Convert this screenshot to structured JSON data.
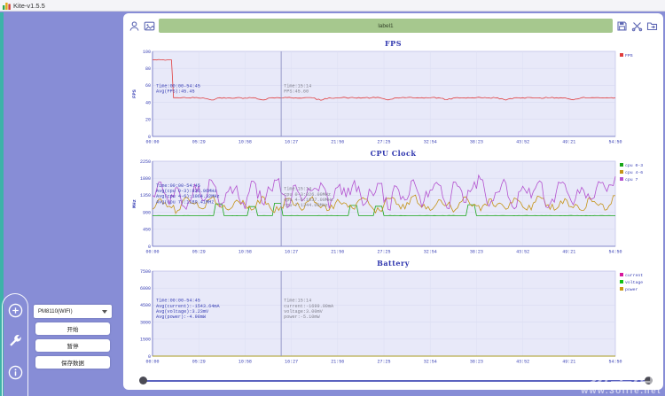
{
  "window": {
    "title": "Kite-v1.5.5"
  },
  "toolbar": {
    "label_text": "label1",
    "icons": [
      "user-icon",
      "screenshot-icon",
      "save-icon",
      "scissors-icon",
      "export-icon"
    ]
  },
  "sidebar": {
    "rail_icons": [
      "add-circle-icon",
      "wrench-icon",
      "info-icon"
    ],
    "device_select": {
      "value": "PM8110(WIFI)"
    },
    "buttons": [
      {
        "label": "开始"
      },
      {
        "label": "暂停"
      },
      {
        "label": "保存数据"
      }
    ]
  },
  "watermark": {
    "title": "易生活",
    "url": "www.3olife.net"
  },
  "colors": {
    "background": "#878dd6",
    "sidebar_teal": "#3db3a8",
    "label_bar_green": "#a6c88e",
    "panel": "#ffffff",
    "chart_text_blue": "#3a41b5",
    "plot_background": "#e8e9f9"
  },
  "chart_data": [
    {
      "type": "line",
      "title": "FPS",
      "ylabel": "FPS",
      "ylim": [
        0,
        100
      ],
      "yticks": [
        0,
        20,
        40,
        60,
        80,
        100
      ],
      "xticks": [
        "00:00",
        "05:29",
        "10:58",
        "16:27",
        "21:56",
        "27:25",
        "32:54",
        "38:23",
        "43:52",
        "49:21",
        "54:50"
      ],
      "legend_position": "right",
      "grid": true,
      "cursor": {
        "x_frac": 0.278
      },
      "annotation": {
        "y_frac": 0.42,
        "lines": [
          "Time:00:00-54:45",
          "Avg(FPS):45.45"
        ]
      },
      "tooltip": {
        "y_frac": 0.42,
        "lines": [
          "Time:15:14",
          "FPS:45.60"
        ]
      },
      "series": [
        {
          "name": "FPS",
          "color": "#e03c3c",
          "jitter": 0.7,
          "values": [
            90,
            90,
            90,
            45.5,
            45.4,
            45.5,
            45.3,
            42.8,
            45.5,
            45.4,
            45.5,
            45.2,
            45.5,
            43.0,
            45.4,
            45.5,
            45.6,
            45.3,
            45.5,
            45.4,
            42.5,
            45.5,
            45.4,
            45.6,
            45.3,
            45.5,
            45.4,
            45.5,
            42.9,
            45.4,
            45.5,
            45.3,
            45.6,
            45.4,
            45.5,
            43.1,
            45.5,
            45.4,
            45.5,
            45.6,
            45.3,
            45.5,
            42.7,
            45.4,
            45.5,
            45.6,
            45.4,
            45.3,
            45.5,
            45.4,
            43.0,
            45.5,
            45.4,
            45.6,
            45.5,
            45.4
          ]
        }
      ]
    },
    {
      "type": "line",
      "title": "CPU Clock",
      "ylabel": "MHz",
      "ylim": [
        0,
        2250
      ],
      "yticks": [
        0,
        450,
        900,
        1350,
        1800,
        2250
      ],
      "xticks": [
        "00:00",
        "05:29",
        "10:58",
        "16:27",
        "21:56",
        "27:25",
        "32:54",
        "38:23",
        "43:52",
        "49:21",
        "54:50"
      ],
      "legend_position": "right",
      "grid": true,
      "cursor": {
        "x_frac": 0.278
      },
      "annotation": {
        "y_frac": 0.3,
        "lines": [
          "Time:00:00-54:45",
          "Avg(cpu 0-3):826.96MHz",
          "Avg(cpu 4-6):1064.32MHz",
          "Avg(cpu 7):1189.41MHz"
        ]
      },
      "tooltip": {
        "y_frac": 0.34,
        "lines": [
          "Time:15:14",
          "cpu 0-3:826.00MHz",
          "cpu 4-6:1037.00MHz",
          "cpu 7:1344.00MHz"
        ]
      },
      "series": [
        {
          "name": "cpu 0-3",
          "color": "#19a619",
          "jitter": 4,
          "values": [
            810,
            811,
            810,
            812,
            810,
            811,
            810,
            812,
            1120,
            810,
            811,
            812,
            1050,
            811,
            810,
            1140,
            812,
            810,
            811,
            810,
            812,
            811,
            810,
            812,
            1080,
            811,
            810,
            1060,
            812,
            810,
            811,
            812,
            810,
            811,
            810,
            812,
            811,
            810,
            1100,
            811,
            812,
            810,
            811,
            810,
            812,
            811,
            810,
            812,
            810,
            811,
            812,
            810,
            811,
            810,
            812,
            811
          ]
        },
        {
          "name": "cpu 4-6",
          "color": "#c49316",
          "jitter": 110,
          "values": [
            980,
            1250,
            1060,
            950,
            1300,
            1120,
            990,
            1280,
            1040,
            960,
            1220,
            1100,
            980,
            1320,
            1010,
            950,
            1260,
            1080,
            990,
            1310,
            1020,
            960,
            1240,
            1130,
            980,
            1290,
            1050,
            940,
            1270,
            1110,
            990,
            1330,
            1030,
            950,
            1230,
            1090,
            970,
            1300,
            1060,
            940,
            1250,
            1120,
            980,
            1280,
            1040,
            960,
            1310,
            1100,
            990,
            1260,
            1020,
            950,
            1290,
            1080,
            970,
            1340
          ]
        },
        {
          "name": "cpu 7",
          "color": "#b351cf",
          "jitter": 190,
          "values": [
            1350,
            1700,
            1100,
            1550,
            980,
            1650,
            1200,
            1750,
            1050,
            1450,
            1600,
            990,
            1720,
            1150,
            1500,
            1790,
            1020,
            1620,
            1250,
            1480,
            1680,
            1000,
            1560,
            1300,
            1740,
            1080,
            1440,
            1660,
            980,
            1580,
            1220,
            1760,
            1040,
            1490,
            1630,
            1010,
            1700,
            1160,
            1530,
            1770,
            1060,
            1430,
            1670,
            990,
            1590,
            1280,
            1730,
            1020,
            1470,
            1640,
            1100,
            1560,
            1240,
            1710,
            1450,
            1850
          ]
        }
      ]
    },
    {
      "type": "line",
      "title": "Battery",
      "ylabel": "",
      "ylim": [
        0,
        7500
      ],
      "yticks": [
        0,
        1500,
        3000,
        4500,
        6000,
        7500
      ],
      "xticks": [
        "00:00",
        "05:29",
        "10:58",
        "16:27",
        "21:56",
        "27:25",
        "32:54",
        "38:23",
        "43:52",
        "49:21",
        "54:50"
      ],
      "legend_position": "right",
      "grid": true,
      "cursor": {
        "x_frac": 0.278
      },
      "annotation": {
        "y_frac": 0.36,
        "lines": [
          "Time:00:00-54:45",
          "Avg(current):-1543.64mA",
          "Avg(voltage):3.23mV",
          "Avg(power):-4.98mW"
        ]
      },
      "tooltip": {
        "y_frac": 0.36,
        "lines": [
          "Time:15:14",
          "current:-1699.00mA",
          "voltage:3.00mV",
          "power:-5.10mW"
        ]
      },
      "series": [
        {
          "name": "current",
          "color": "#d6179c",
          "jitter": 0,
          "values": [
            -1543,
            -1540,
            -1546,
            -1542,
            -1545,
            -1541,
            -1544,
            -1543,
            -1542,
            -1545,
            -1543
          ]
        },
        {
          "name": "voltage",
          "color": "#13c113",
          "jitter": 0,
          "values": [
            3.23,
            3.22,
            3.23,
            3.24,
            3.23,
            3.22,
            3.23,
            3.23,
            3.24,
            3.23,
            3.23
          ]
        },
        {
          "name": "power",
          "color": "#cb9a15",
          "jitter": 0,
          "values": [
            -4.98,
            -4.97,
            -4.99,
            -4.98,
            -4.97,
            -4.99,
            -4.98,
            -4.98,
            -4.97,
            -4.99,
            -4.98
          ]
        }
      ]
    }
  ]
}
